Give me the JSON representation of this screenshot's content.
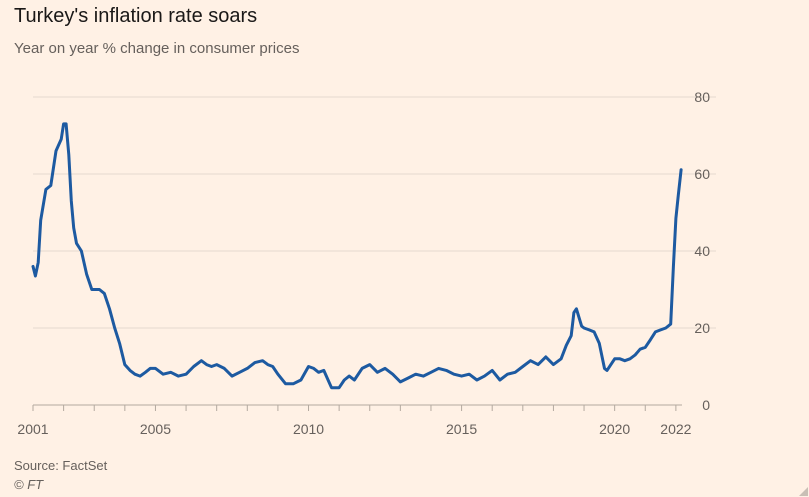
{
  "chart_data": {
    "type": "line",
    "title": "Turkey's inflation rate soars",
    "subtitle": "Year on year % change in consumer prices",
    "source": "Source: FactSet",
    "credit": "© FT",
    "x_ticks": [
      "2001",
      "2005",
      "2010",
      "2015",
      "2020",
      "2022"
    ],
    "y_ticks": [
      0,
      20,
      40,
      60,
      80
    ],
    "ylim": [
      0,
      80
    ],
    "xlim": [
      2001,
      2022.2
    ],
    "grid": true,
    "y_axis_side": "right",
    "color": "#1d5aa1",
    "series": [
      {
        "x": [
          2001.0,
          2001.08,
          2001.17,
          2001.25,
          2001.42,
          2001.58,
          2001.75,
          2001.92,
          2002.0,
          2002.08,
          2002.17,
          2002.25,
          2002.33,
          2002.42,
          2002.58,
          2002.75,
          2002.92,
          2003.0,
          2003.17,
          2003.33,
          2003.5,
          2003.67,
          2003.83,
          2004.0,
          2004.17,
          2004.33,
          2004.5,
          2004.67,
          2004.83,
          2005.0,
          2005.25,
          2005.5,
          2005.75,
          2006.0,
          2006.25,
          2006.5,
          2006.67,
          2006.83,
          2007.0,
          2007.25,
          2007.5,
          2007.75,
          2008.0,
          2008.25,
          2008.5,
          2008.67,
          2008.83,
          2009.0,
          2009.25,
          2009.5,
          2009.75,
          2010.0,
          2010.17,
          2010.33,
          2010.5,
          2010.75,
          2011.0,
          2011.17,
          2011.33,
          2011.5,
          2011.75,
          2012.0,
          2012.25,
          2012.5,
          2012.75,
          2013.0,
          2013.25,
          2013.5,
          2013.75,
          2014.0,
          2014.25,
          2014.5,
          2014.75,
          2015.0,
          2015.25,
          2015.5,
          2015.75,
          2016.0,
          2016.25,
          2016.5,
          2016.75,
          2017.0,
          2017.25,
          2017.5,
          2017.75,
          2018.0,
          2018.25,
          2018.42,
          2018.58,
          2018.67,
          2018.75,
          2018.92,
          2019.0,
          2019.17,
          2019.33,
          2019.5,
          2019.67,
          2019.75,
          2019.92,
          2020.0,
          2020.17,
          2020.33,
          2020.5,
          2020.67,
          2020.83,
          2021.0,
          2021.17,
          2021.33,
          2021.5,
          2021.67,
          2021.83,
          2021.92,
          2022.0,
          2022.08,
          2022.17
        ],
        "y": [
          36,
          33.5,
          37,
          48,
          56,
          57,
          66,
          69,
          73,
          73,
          65,
          53,
          46,
          42,
          40,
          34,
          30,
          30,
          30,
          29,
          25,
          20,
          16,
          10.5,
          9,
          8,
          7.5,
          8.5,
          9.5,
          9.5,
          8,
          8.5,
          7.5,
          8,
          10,
          11.5,
          10.5,
          10,
          10.5,
          9.5,
          7.5,
          8.5,
          9.5,
          11,
          11.5,
          10.5,
          10,
          8,
          5.5,
          5.5,
          6.5,
          10,
          9.5,
          8.5,
          9,
          4.5,
          4.5,
          6.5,
          7.5,
          6.5,
          9.5,
          10.5,
          8.5,
          9.5,
          8,
          6,
          7,
          8,
          7.5,
          8.5,
          9.5,
          9,
          8,
          7.5,
          8,
          6.5,
          7.5,
          9,
          6.5,
          8,
          8.5,
          10,
          11.5,
          10.5,
          12.5,
          10.5,
          12,
          15.5,
          18,
          24,
          25,
          20.5,
          20,
          19.5,
          19,
          16,
          9.5,
          9,
          11,
          12,
          12,
          11.5,
          12,
          13,
          14.5,
          15,
          17,
          19,
          19.5,
          20,
          21,
          36,
          48.5,
          54.5,
          61.1
        ]
      }
    ]
  },
  "ui": {
    "resize_icon": "resize-handle-icon"
  }
}
